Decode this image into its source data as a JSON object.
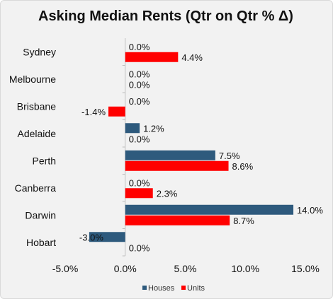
{
  "chart_data": {
    "type": "bar",
    "orientation": "horizontal",
    "title": "Asking Median Rents (Qtr on Qtr % Δ)",
    "categories": [
      "Sydney",
      "Melbourne",
      "Brisbane",
      "Adelaide",
      "Perth",
      "Canberra",
      "Darwin",
      "Hobart"
    ],
    "series": [
      {
        "name": "Houses",
        "color": "#2e5a7d",
        "values": [
          0.0,
          0.0,
          0.0,
          1.2,
          7.5,
          0.0,
          14.0,
          -3.0
        ]
      },
      {
        "name": "Units",
        "color": "#ff0000",
        "values": [
          4.4,
          0.0,
          -1.4,
          0.0,
          8.6,
          2.3,
          8.7,
          0.0
        ]
      }
    ],
    "xlim": [
      -5,
      15
    ],
    "x_ticks": [
      "-5.0%",
      "0.0%",
      "5.0%",
      "10.0%",
      "15.0%"
    ],
    "data_labels": {
      "Houses": [
        "0.0%",
        "0.0%",
        "0.0%",
        "1.2%",
        "7.5%",
        "0.0%",
        "14.0%",
        "-3.0%"
      ],
      "Units": [
        "4.4%",
        "0.0%",
        "-1.4%",
        "0.0%",
        "8.6%",
        "2.3%",
        "8.7%",
        "0.0%"
      ]
    },
    "grid": false,
    "legend_position": "bottom"
  }
}
